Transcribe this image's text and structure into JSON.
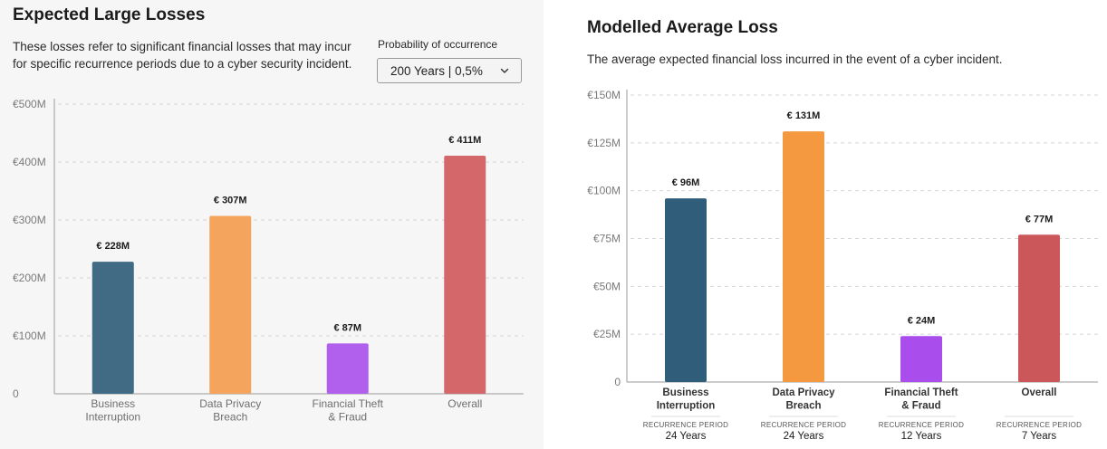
{
  "left": {
    "title": "Expected Large Losses",
    "description_line1": "These losses refer to significant financial losses that may incur",
    "description_line2": "for specific recurrence periods due to a cyber security incident.",
    "probability_label": "Probability of occurrence",
    "dropdown_value": "200 Years | 0,5%"
  },
  "right": {
    "title": "Modelled Average Loss",
    "description": "The average expected financial loss incurred in the event of a cyber incident."
  },
  "chart_data": [
    {
      "type": "bar",
      "title": "Expected Large Losses",
      "categories": [
        [
          "Business",
          "Interruption"
        ],
        [
          "Data Privacy",
          "Breach"
        ],
        [
          "Financial Theft",
          "& Fraud"
        ],
        [
          "Overall"
        ]
      ],
      "values": [
        228,
        307,
        87,
        411
      ],
      "value_labels": [
        "€ 228M",
        "€ 307M",
        "€ 87M",
        "€ 411M"
      ],
      "colors": [
        "#416b84",
        "#f4a45c",
        "#b160ee",
        "#d4676a"
      ],
      "ylim": [
        0,
        500
      ],
      "yticks": [
        0,
        100,
        200,
        300,
        400,
        500
      ],
      "ytick_labels": [
        "0",
        "€100M",
        "€200M",
        "€300M",
        "€400M",
        "€500M"
      ],
      "grid": true
    },
    {
      "type": "bar",
      "title": "Modelled Average Loss",
      "categories": [
        [
          "Business",
          "Interruption"
        ],
        [
          "Data Privacy",
          "Breach"
        ],
        [
          "Financial Theft",
          "& Fraud"
        ],
        [
          "Overall"
        ]
      ],
      "values": [
        96,
        131,
        24,
        77
      ],
      "value_labels": [
        "€ 96M",
        "€ 131M",
        "€ 24M",
        "€ 77M"
      ],
      "colors": [
        "#2f5d7a",
        "#f4993f",
        "#a94ded",
        "#cc575b"
      ],
      "ylim": [
        0,
        150
      ],
      "yticks": [
        0,
        25,
        50,
        75,
        100,
        125,
        150
      ],
      "ytick_labels": [
        "0",
        "€25M",
        "€50M",
        "€75M",
        "€100M",
        "€125M",
        "€150M"
      ],
      "grid": true,
      "recurrence_label": "RECURRENCE PERIOD",
      "recurrence_periods": [
        "24 Years",
        "24 Years",
        "12 Years",
        "7 Years"
      ]
    }
  ]
}
